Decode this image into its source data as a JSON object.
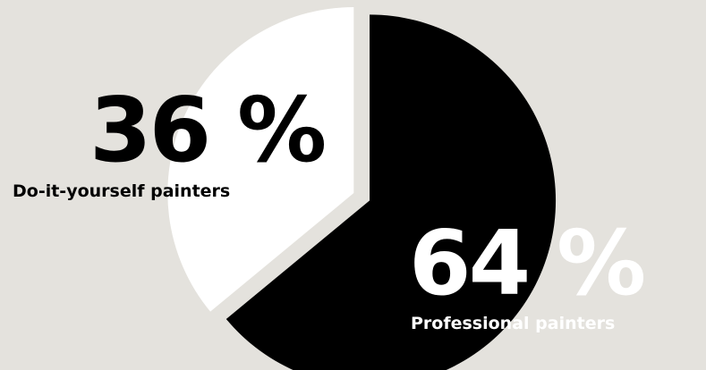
{
  "chart_data": {
    "type": "pie",
    "slices": [
      {
        "label": "Professional painters",
        "value": 64,
        "display": "64 %",
        "color": "#000000",
        "text_color": "#ffffff"
      },
      {
        "label": "Do-it-yourself painters",
        "value": 36,
        "display": "36 %",
        "color": "#ffffff",
        "text_color": "#000000"
      }
    ],
    "title": "",
    "legend": "none",
    "exploded": true
  }
}
